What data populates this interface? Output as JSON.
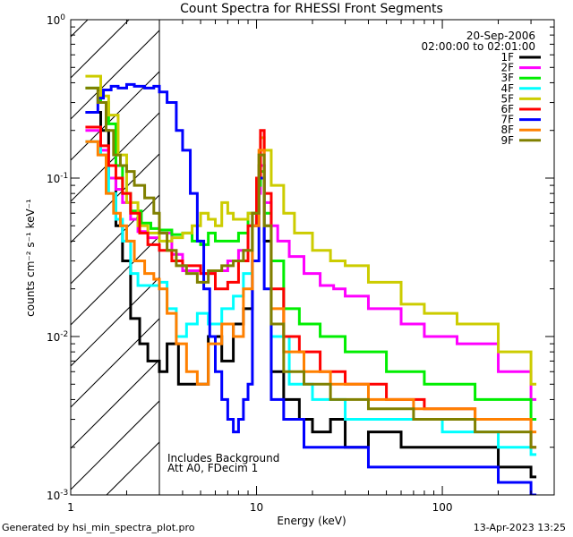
{
  "chart_data": {
    "type": "line",
    "title": "Count Spectra for RHESSI Front Segments",
    "xlabel": "Energy (keV)",
    "ylabel": "counts cm⁻² s⁻¹ keV⁻¹",
    "xscale": "log",
    "yscale": "log",
    "xlim": [
      1,
      400
    ],
    "ylim": [
      0.001,
      1
    ],
    "x_ticks": [
      {
        "v": 1,
        "label": "1"
      },
      {
        "v": 10,
        "label": "10"
      },
      {
        "v": 100,
        "label": "100"
      }
    ],
    "y_ticks": [
      {
        "v": 1,
        "base": "10",
        "exp": "0"
      },
      {
        "v": 0.1,
        "base": "10",
        "exp": "-1"
      },
      {
        "v": 0.01,
        "base": "10",
        "exp": "-2"
      },
      {
        "v": 0.001,
        "base": "10",
        "exp": "-3"
      }
    ],
    "date": "20-Sep-2006",
    "time_range": "02:00:00 to 02:01:00",
    "shaded_region_xmax": 3,
    "annotations": [
      "Includes Background",
      "Att A0, FDecim 1"
    ],
    "series": [
      {
        "name": "1F",
        "color": "#000000",
        "points": [
          [
            1.2,
            0.26
          ],
          [
            1.45,
            0.2
          ],
          [
            1.6,
            0.1
          ],
          [
            1.75,
            0.05
          ],
          [
            1.9,
            0.03
          ],
          [
            2.1,
            0.013
          ],
          [
            2.35,
            0.009
          ],
          [
            2.6,
            0.007
          ],
          [
            3.0,
            0.006
          ],
          [
            3.3,
            0.009
          ],
          [
            3.8,
            0.005
          ],
          [
            4.5,
            0.005
          ],
          [
            5.5,
            0.01
          ],
          [
            6.5,
            0.007
          ],
          [
            7.5,
            0.012
          ],
          [
            8.5,
            0.015
          ],
          [
            9.5,
            0.06
          ],
          [
            10.3,
            0.12
          ],
          [
            11,
            0.04
          ],
          [
            12,
            0.006
          ],
          [
            14,
            0.004
          ],
          [
            17,
            0.003
          ],
          [
            20,
            0.0025
          ],
          [
            25,
            0.003
          ],
          [
            30,
            0.002
          ],
          [
            40,
            0.0025
          ],
          [
            60,
            0.002
          ],
          [
            100,
            0.002
          ],
          [
            200,
            0.0015
          ],
          [
            300,
            0.0013
          ]
        ]
      },
      {
        "name": "2F",
        "color": "#ff00ff",
        "points": [
          [
            1.2,
            0.2
          ],
          [
            1.45,
            0.15
          ],
          [
            1.6,
            0.1
          ],
          [
            1.75,
            0.085
          ],
          [
            1.9,
            0.07
          ],
          [
            2.1,
            0.055
          ],
          [
            2.3,
            0.046
          ],
          [
            2.6,
            0.042
          ],
          [
            3.0,
            0.045
          ],
          [
            3.5,
            0.033
          ],
          [
            4.0,
            0.026
          ],
          [
            5,
            0.025
          ],
          [
            6,
            0.026
          ],
          [
            7,
            0.03
          ],
          [
            8,
            0.035
          ],
          [
            9,
            0.05
          ],
          [
            10,
            0.08
          ],
          [
            10.5,
            0.12
          ],
          [
            11,
            0.07
          ],
          [
            12,
            0.05
          ],
          [
            13,
            0.04
          ],
          [
            15,
            0.032
          ],
          [
            18,
            0.025
          ],
          [
            22,
            0.021
          ],
          [
            26,
            0.02
          ],
          [
            30,
            0.018
          ],
          [
            40,
            0.015
          ],
          [
            60,
            0.012
          ],
          [
            80,
            0.01
          ],
          [
            120,
            0.009
          ],
          [
            200,
            0.006
          ],
          [
            300,
            0.004
          ]
        ]
      },
      {
        "name": "3F",
        "color": "#00ee00",
        "points": [
          [
            1.2,
            0.37
          ],
          [
            1.45,
            0.3
          ],
          [
            1.6,
            0.22
          ],
          [
            1.75,
            0.12
          ],
          [
            1.9,
            0.08
          ],
          [
            2.1,
            0.062
          ],
          [
            2.4,
            0.052
          ],
          [
            2.7,
            0.048
          ],
          [
            3.0,
            0.047
          ],
          [
            3.5,
            0.044
          ],
          [
            4,
            0.045
          ],
          [
            4.5,
            0.04
          ],
          [
            5,
            0.038
          ],
          [
            5.5,
            0.045
          ],
          [
            6,
            0.04
          ],
          [
            7,
            0.04
          ],
          [
            8,
            0.045
          ],
          [
            9,
            0.06
          ],
          [
            10,
            0.09
          ],
          [
            10.5,
            0.11
          ],
          [
            11,
            0.06
          ],
          [
            12,
            0.03
          ],
          [
            14,
            0.015
          ],
          [
            17,
            0.012
          ],
          [
            22,
            0.01
          ],
          [
            30,
            0.008
          ],
          [
            50,
            0.006
          ],
          [
            80,
            0.005
          ],
          [
            150,
            0.004
          ],
          [
            300,
            0.003
          ]
        ]
      },
      {
        "name": "4F",
        "color": "#00ffff",
        "points": [
          [
            1.2,
            0.17
          ],
          [
            1.45,
            0.14
          ],
          [
            1.6,
            0.08
          ],
          [
            1.75,
            0.055
          ],
          [
            1.9,
            0.04
          ],
          [
            2.1,
            0.025
          ],
          [
            2.3,
            0.021
          ],
          [
            2.6,
            0.021
          ],
          [
            3.0,
            0.022
          ],
          [
            3.3,
            0.015
          ],
          [
            3.7,
            0.01
          ],
          [
            4.2,
            0.012
          ],
          [
            4.8,
            0.014
          ],
          [
            5.5,
            0.012
          ],
          [
            6.5,
            0.015
          ],
          [
            7.5,
            0.018
          ],
          [
            8.5,
            0.025
          ],
          [
            9.5,
            0.05
          ],
          [
            10.3,
            0.1
          ],
          [
            11,
            0.05
          ],
          [
            12,
            0.01
          ],
          [
            15,
            0.005
          ],
          [
            20,
            0.004
          ],
          [
            30,
            0.003
          ],
          [
            50,
            0.003
          ],
          [
            100,
            0.0025
          ],
          [
            200,
            0.002
          ],
          [
            300,
            0.0018
          ]
        ]
      },
      {
        "name": "5F",
        "color": "#cccc00",
        "points": [
          [
            1.2,
            0.44
          ],
          [
            1.45,
            0.33
          ],
          [
            1.6,
            0.25
          ],
          [
            1.8,
            0.14
          ],
          [
            2.0,
            0.07
          ],
          [
            2.3,
            0.05
          ],
          [
            2.6,
            0.045
          ],
          [
            3.0,
            0.04
          ],
          [
            3.5,
            0.042
          ],
          [
            4,
            0.045
          ],
          [
            4.5,
            0.05
          ],
          [
            5,
            0.06
          ],
          [
            5.5,
            0.055
          ],
          [
            6,
            0.05
          ],
          [
            6.5,
            0.07
          ],
          [
            7,
            0.06
          ],
          [
            7.5,
            0.055
          ],
          [
            8,
            0.055
          ],
          [
            9,
            0.06
          ],
          [
            10,
            0.1
          ],
          [
            10.5,
            0.18
          ],
          [
            11,
            0.15
          ],
          [
            12,
            0.09
          ],
          [
            14,
            0.06
          ],
          [
            16,
            0.045
          ],
          [
            20,
            0.035
          ],
          [
            25,
            0.03
          ],
          [
            30,
            0.028
          ],
          [
            40,
            0.022
          ],
          [
            60,
            0.016
          ],
          [
            80,
            0.014
          ],
          [
            120,
            0.012
          ],
          [
            200,
            0.008
          ],
          [
            300,
            0.005
          ]
        ]
      },
      {
        "name": "6F",
        "color": "#ff0000",
        "points": [
          [
            1.2,
            0.21
          ],
          [
            1.45,
            0.16
          ],
          [
            1.6,
            0.12
          ],
          [
            1.75,
            0.1
          ],
          [
            1.9,
            0.08
          ],
          [
            2.1,
            0.06
          ],
          [
            2.35,
            0.045
          ],
          [
            2.6,
            0.038
          ],
          [
            3.0,
            0.035
          ],
          [
            3.5,
            0.03
          ],
          [
            4.0,
            0.028
          ],
          [
            5,
            0.025
          ],
          [
            6,
            0.02
          ],
          [
            7,
            0.022
          ],
          [
            8,
            0.03
          ],
          [
            9,
            0.05
          ],
          [
            10,
            0.1
          ],
          [
            10.5,
            0.2
          ],
          [
            11,
            0.08
          ],
          [
            12,
            0.02
          ],
          [
            14,
            0.01
          ],
          [
            17,
            0.008
          ],
          [
            22,
            0.006
          ],
          [
            30,
            0.005
          ],
          [
            50,
            0.004
          ],
          [
            80,
            0.0035
          ],
          [
            150,
            0.003
          ],
          [
            300,
            0.002
          ]
        ]
      },
      {
        "name": "7F",
        "color": "#0000ff",
        "points": [
          [
            1.2,
            0.26
          ],
          [
            1.4,
            0.32
          ],
          [
            1.5,
            0.36
          ],
          [
            1.65,
            0.38
          ],
          [
            1.8,
            0.37
          ],
          [
            2.0,
            0.39
          ],
          [
            2.2,
            0.38
          ],
          [
            2.5,
            0.37
          ],
          [
            2.8,
            0.38
          ],
          [
            3.0,
            0.35
          ],
          [
            3.3,
            0.3
          ],
          [
            3.7,
            0.2
          ],
          [
            4.0,
            0.15
          ],
          [
            4.4,
            0.08
          ],
          [
            4.8,
            0.04
          ],
          [
            5.2,
            0.02
          ],
          [
            5.6,
            0.01
          ],
          [
            6.0,
            0.006
          ],
          [
            6.5,
            0.004
          ],
          [
            7,
            0.003
          ],
          [
            7.5,
            0.0025
          ],
          [
            8,
            0.003
          ],
          [
            8.5,
            0.004
          ],
          [
            9,
            0.005
          ],
          [
            9.5,
            0.03
          ],
          [
            10.3,
            0.1
          ],
          [
            11,
            0.02
          ],
          [
            12,
            0.004
          ],
          [
            14,
            0.003
          ],
          [
            18,
            0.002
          ],
          [
            25,
            0.002
          ],
          [
            40,
            0.0015
          ],
          [
            80,
            0.0015
          ],
          [
            200,
            0.0012
          ],
          [
            300,
            0.001
          ]
        ]
      },
      {
        "name": "8F",
        "color": "#ff8000",
        "points": [
          [
            1.2,
            0.17
          ],
          [
            1.4,
            0.14
          ],
          [
            1.55,
            0.08
          ],
          [
            1.7,
            0.06
          ],
          [
            1.85,
            0.05
          ],
          [
            2.0,
            0.04
          ],
          [
            2.2,
            0.03
          ],
          [
            2.5,
            0.025
          ],
          [
            2.8,
            0.023
          ],
          [
            3.0,
            0.02
          ],
          [
            3.3,
            0.014
          ],
          [
            3.7,
            0.009
          ],
          [
            4.2,
            0.006
          ],
          [
            4.8,
            0.005
          ],
          [
            5.5,
            0.009
          ],
          [
            6.5,
            0.012
          ],
          [
            7.5,
            0.01
          ],
          [
            8.5,
            0.02
          ],
          [
            9.5,
            0.05
          ],
          [
            10.3,
            0.15
          ],
          [
            11,
            0.05
          ],
          [
            12,
            0.015
          ],
          [
            14,
            0.008
          ],
          [
            18,
            0.006
          ],
          [
            25,
            0.005
          ],
          [
            40,
            0.004
          ],
          [
            70,
            0.0035
          ],
          [
            150,
            0.003
          ],
          [
            300,
            0.0025
          ]
        ]
      },
      {
        "name": "9F",
        "color": "#808000",
        "points": [
          [
            1.2,
            0.37
          ],
          [
            1.4,
            0.3
          ],
          [
            1.55,
            0.2
          ],
          [
            1.7,
            0.14
          ],
          [
            1.85,
            0.12
          ],
          [
            2.0,
            0.11
          ],
          [
            2.2,
            0.09
          ],
          [
            2.5,
            0.075
          ],
          [
            2.8,
            0.06
          ],
          [
            3.0,
            0.045
          ],
          [
            3.3,
            0.035
          ],
          [
            3.7,
            0.028
          ],
          [
            4.2,
            0.025
          ],
          [
            4.8,
            0.022
          ],
          [
            5.5,
            0.026
          ],
          [
            6.5,
            0.028
          ],
          [
            7.5,
            0.03
          ],
          [
            8.5,
            0.035
          ],
          [
            9.5,
            0.06
          ],
          [
            10.3,
            0.14
          ],
          [
            11,
            0.05
          ],
          [
            12,
            0.012
          ],
          [
            14,
            0.006
          ],
          [
            18,
            0.005
          ],
          [
            25,
            0.004
          ],
          [
            40,
            0.0035
          ],
          [
            70,
            0.003
          ],
          [
            150,
            0.0025
          ],
          [
            300,
            0.002
          ]
        ]
      }
    ]
  },
  "footer": {
    "generated_by": "Generated by hsi_min_spectra_plot.pro",
    "timestamp": "13-Apr-2023 13:25"
  }
}
